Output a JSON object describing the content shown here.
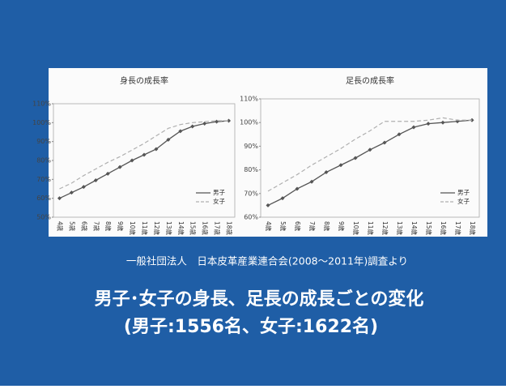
{
  "chart_data": [
    {
      "type": "line",
      "title": "身長の成長率",
      "categories": [
        "4歳",
        "5歳",
        "6歳",
        "7歳",
        "8歳",
        "9歳",
        "10歳",
        "11歳",
        "12歳",
        "13歳",
        "14歳",
        "15歳",
        "16歳",
        "17歳",
        "18歳"
      ],
      "series": [
        {
          "name": "男子",
          "color": "#555555",
          "values": [
            60,
            63,
            66,
            69.5,
            73,
            76.5,
            80,
            83,
            86,
            91,
            95.5,
            98,
            99.5,
            100.5,
            101
          ]
        },
        {
          "name": "女子",
          "color": "#b0b0b0",
          "values": [
            65,
            68,
            72,
            75.5,
            79,
            82,
            85.5,
            89,
            93,
            97,
            99,
            100,
            100.5,
            101,
            101
          ]
        }
      ],
      "ylim": [
        50,
        110
      ],
      "yticks": [
        {
          "value": 50,
          "label": "50%"
        },
        {
          "value": 60,
          "label": "60%"
        },
        {
          "value": 70,
          "label": "70%"
        },
        {
          "value": 80,
          "label": "80%"
        },
        {
          "value": 90,
          "label": "90%"
        },
        {
          "value": 100,
          "label": "100%"
        },
        {
          "value": 110,
          "label": "110%"
        }
      ],
      "legend": "lower right"
    },
    {
      "type": "line",
      "title": "足長の成長率",
      "categories": [
        "4歳",
        "5歳",
        "6歳",
        "7歳",
        "8歳",
        "9歳",
        "10歳",
        "11歳",
        "12歳",
        "13歳",
        "14歳",
        "15歳",
        "16歳",
        "17歳",
        "18歳"
      ],
      "series": [
        {
          "name": "男子",
          "color": "#555555",
          "values": [
            65,
            68,
            72,
            75,
            79,
            82,
            85,
            88.5,
            91.5,
            95,
            98,
            99.5,
            100,
            100.5,
            101
          ]
        },
        {
          "name": "女子",
          "color": "#b0b0b0",
          "values": [
            71,
            74.5,
            78,
            82,
            85.5,
            89,
            93,
            96.5,
            100.5,
            100.5,
            100.5,
            101,
            102,
            101,
            101
          ]
        }
      ],
      "ylim": [
        60,
        110
      ],
      "yticks": [
        {
          "value": 60,
          "label": "60%"
        },
        {
          "value": 70,
          "label": "70%"
        },
        {
          "value": 80,
          "label": "80%"
        },
        {
          "value": 90,
          "label": "90%"
        },
        {
          "value": 100,
          "label": "100%"
        },
        {
          "value": 110,
          "label": "110%"
        }
      ],
      "legend": "lower right"
    }
  ],
  "source": "一般社団法人　日本皮革産業連合会(2008～2011年)調査より",
  "caption": [
    "男子･女子の身長、足長の成長ごとの変化",
    "(男子:1556名、女子:1622名)"
  ]
}
